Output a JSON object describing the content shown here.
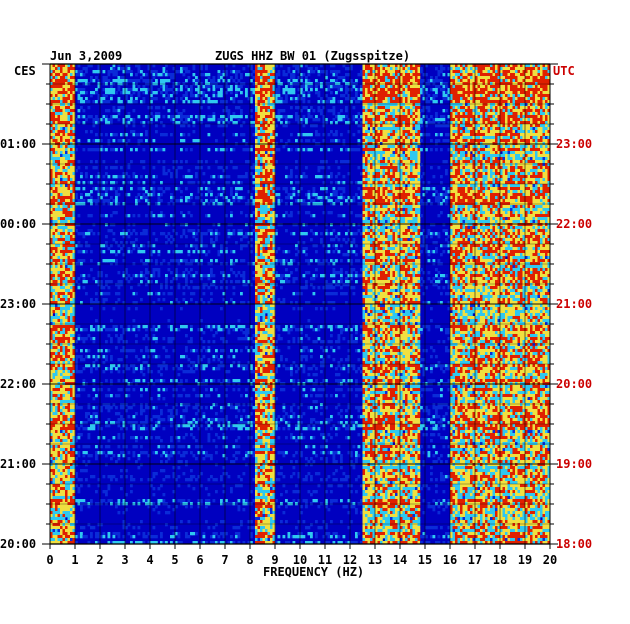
{
  "chart_data": {
    "type": "heatmap",
    "header": {
      "date": "Jun 3,2009",
      "station": "ZUGS HHZ BW 01 (Zugsspitze)"
    },
    "xlabel": "FREQUENCY (HZ)",
    "xlim": [
      0,
      20
    ],
    "x_ticks": [
      "0",
      "1",
      "2",
      "3",
      "4",
      "5",
      "6",
      "7",
      "8",
      "9",
      "10",
      "11",
      "12",
      "13",
      "14",
      "15",
      "16",
      "17",
      "18",
      "19",
      "20"
    ],
    "left_axis": {
      "label": "CES",
      "ticks": [
        "20:00",
        "21:00",
        "22:00",
        "23:00",
        "00:00",
        "01:00"
      ]
    },
    "right_axis": {
      "label": "UTC",
      "ticks": [
        "18:00",
        "19:00",
        "20:00",
        "21:00",
        "22:00",
        "23:00"
      ]
    },
    "colors": {
      "background": "#0000c0",
      "low": "#0a2bd8",
      "mid": "#2fc8f0",
      "high": "#f0e040",
      "peak": "#e02000",
      "axis_right": "#cc0000"
    },
    "energy_bands_hz": [
      {
        "name": "low-frequency",
        "range": [
          0,
          1
        ]
      },
      {
        "name": "band-8-9",
        "range": [
          8.2,
          9.0
        ]
      },
      {
        "name": "band-12-15",
        "range": [
          12.5,
          14.8
        ]
      },
      {
        "name": "band-16-20",
        "range": [
          16,
          20
        ]
      }
    ]
  }
}
